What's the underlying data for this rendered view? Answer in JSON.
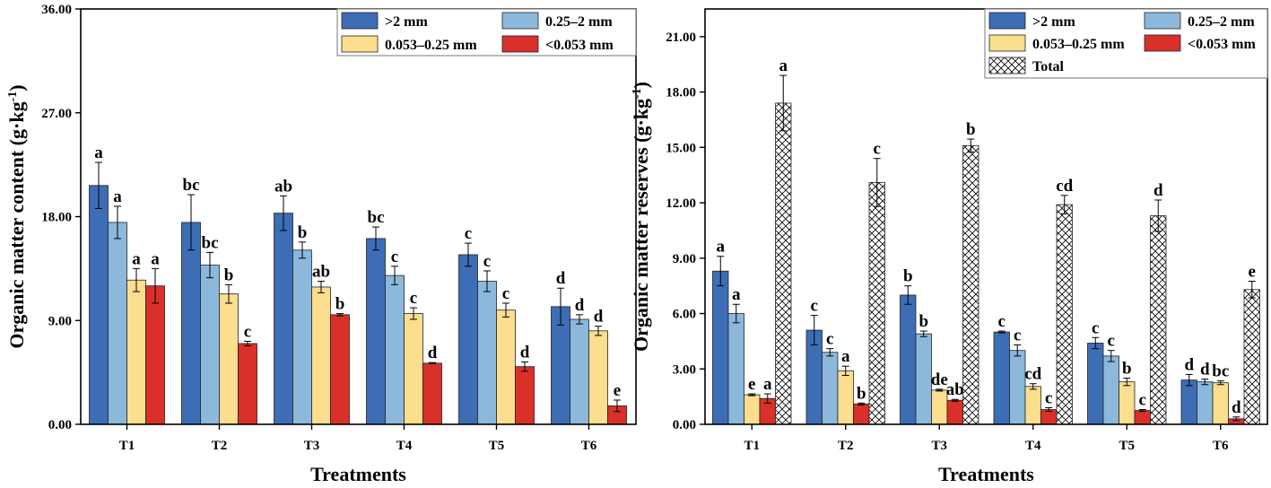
{
  "chart_data": [
    {
      "type": "bar",
      "title": "",
      "xlabel": "Treatments",
      "ylabel": "Organic matter content (g·kg",
      "ylabel_sup": "-1",
      "ylabel_end": ")",
      "categories": [
        "T1",
        "T2",
        "T3",
        "T4",
        "T5",
        "T6"
      ],
      "ylim": [
        0,
        36
      ],
      "yticks": [
        "0.00",
        "9.00",
        "18.00",
        "27.00",
        "36.00"
      ],
      "legend_position": "top-right",
      "series": [
        {
          "name": ">2 mm",
          "color": "#3d6db5",
          "pattern": "solid",
          "values": [
            20.7,
            17.5,
            18.3,
            16.1,
            14.7,
            10.2
          ],
          "errors": [
            2.0,
            2.4,
            1.5,
            1.0,
            1.0,
            1.6
          ],
          "letters": [
            "a",
            "bc",
            "ab",
            "bc",
            "c",
            "d"
          ]
        },
        {
          "name": "0.25–2 mm",
          "color": "#8cb8dc",
          "pattern": "solid",
          "values": [
            17.5,
            13.8,
            15.1,
            12.9,
            12.4,
            9.1
          ],
          "errors": [
            1.4,
            1.1,
            0.7,
            0.8,
            0.9,
            0.4
          ],
          "letters": [
            "a",
            "bc",
            "b",
            "c",
            "c",
            "d"
          ]
        },
        {
          "name": "0.053–0.25 mm",
          "color": "#fbde8e",
          "pattern": "solid",
          "values": [
            12.5,
            11.3,
            11.9,
            9.6,
            9.9,
            8.1
          ],
          "errors": [
            1.0,
            0.8,
            0.5,
            0.5,
            0.6,
            0.4
          ],
          "letters": [
            "a",
            "b",
            "ab",
            "c",
            "c",
            "d"
          ]
        },
        {
          "name": "<0.053 mm",
          "color": "#d9302a",
          "pattern": "solid",
          "values": [
            12.0,
            7.0,
            9.5,
            5.3,
            5.0,
            1.6
          ],
          "errors": [
            1.5,
            0.2,
            0.1,
            0.05,
            0.4,
            0.5
          ],
          "letters": [
            "a",
            "c",
            "b",
            "d",
            "d",
            "e"
          ]
        }
      ]
    },
    {
      "type": "bar",
      "title": "",
      "xlabel": "Treatments",
      "ylabel": "Organic matter reserves (g·kg",
      "ylabel_sup": "-1",
      "ylabel_end": ")",
      "categories": [
        "T1",
        "T2",
        "T3",
        "T4",
        "T5",
        "T6"
      ],
      "ylim": [
        0,
        22.5
      ],
      "yticks": [
        "0.00",
        "3.00",
        "6.00",
        "9.00",
        "12.00",
        "15.00",
        "18.00",
        "21.00"
      ],
      "legend_position": "top-right",
      "series": [
        {
          "name": ">2 mm",
          "color": "#3d6db5",
          "pattern": "solid",
          "values": [
            8.3,
            5.1,
            7.0,
            5.0,
            4.4,
            2.4
          ],
          "errors": [
            0.8,
            0.8,
            0.5,
            0.05,
            0.3,
            0.3
          ],
          "letters": [
            "a",
            "c",
            "b",
            "c",
            "c",
            "d"
          ]
        },
        {
          "name": "0.25–2 mm",
          "color": "#8cb8dc",
          "pattern": "solid",
          "values": [
            6.0,
            3.9,
            4.9,
            4.0,
            3.7,
            2.3
          ],
          "errors": [
            0.5,
            0.2,
            0.15,
            0.3,
            0.3,
            0.15
          ],
          "letters": [
            "a",
            "c",
            "b",
            "c",
            "c",
            "d"
          ]
        },
        {
          "name": "0.053–0.25 mm",
          "color": "#fbde8e",
          "pattern": "solid",
          "values": [
            1.6,
            2.9,
            1.85,
            2.05,
            2.3,
            2.25
          ],
          "errors": [
            0.05,
            0.25,
            0.05,
            0.15,
            0.2,
            0.1
          ],
          "letters": [
            "e",
            "a",
            "de",
            "cd",
            "b",
            "bc"
          ]
        },
        {
          "name": "<0.053 mm",
          "color": "#d9302a",
          "pattern": "solid",
          "values": [
            1.4,
            1.1,
            1.3,
            0.8,
            0.75,
            0.3
          ],
          "errors": [
            0.25,
            0.05,
            0.05,
            0.1,
            0.05,
            0.1
          ],
          "letters": [
            "a",
            "b",
            "ab",
            "c",
            "c",
            "d"
          ]
        },
        {
          "name": "Total",
          "color": "#ffffff",
          "pattern": "crosshatch",
          "values": [
            17.4,
            13.1,
            15.1,
            11.9,
            11.3,
            7.3
          ],
          "errors": [
            1.5,
            1.3,
            0.35,
            0.5,
            0.85,
            0.45
          ],
          "letters": [
            "a",
            "c",
            "b",
            "cd",
            "d",
            "e"
          ]
        }
      ]
    }
  ]
}
